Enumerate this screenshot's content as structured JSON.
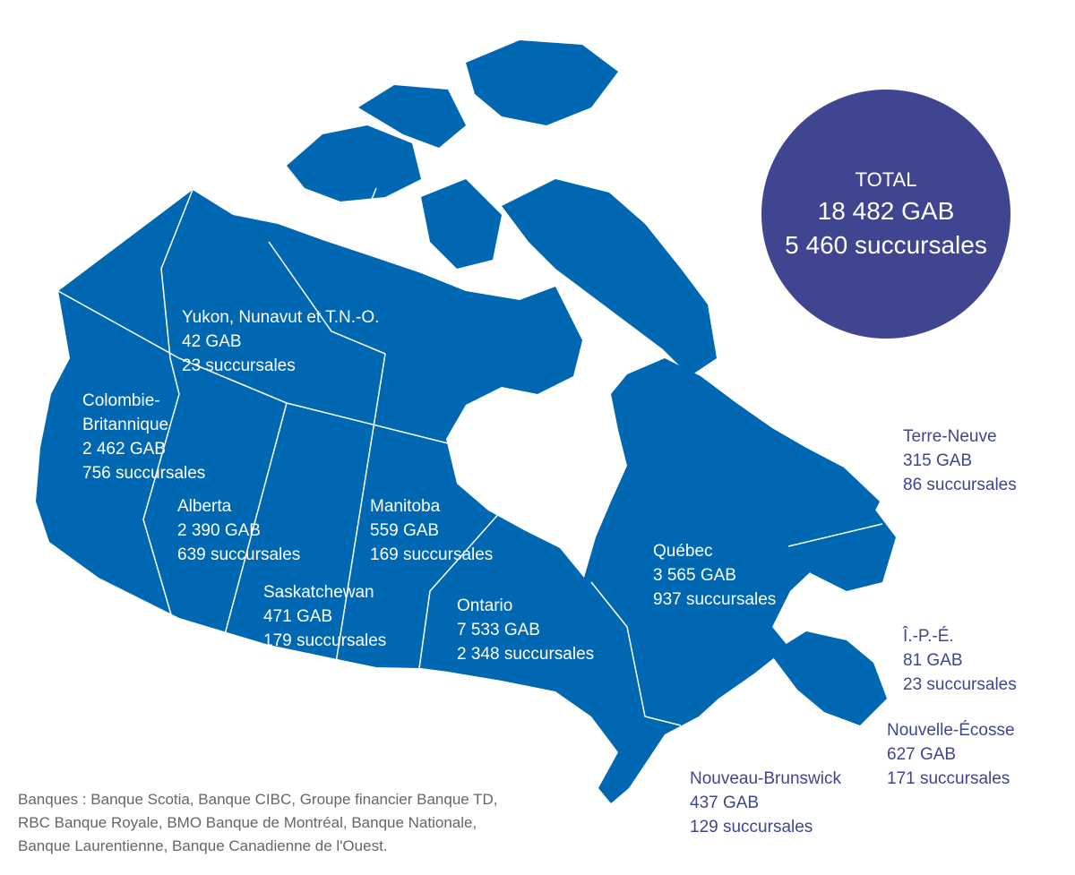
{
  "colors": {
    "map": "#0068b3",
    "border": "#ffffff",
    "circle": "#3f4590",
    "outside_label": "#3f4590",
    "footnote": "#666666"
  },
  "total": {
    "title": "TOTAL",
    "atm": "18 482 GAB",
    "branches": "5 460 succursales"
  },
  "regions": [
    {
      "name": "Yukon, Nunavut et T.N.-O.",
      "atm": "42 GAB",
      "branches": "23 succursales"
    },
    {
      "name": "Colombie-",
      "name2": "Britannique",
      "atm": "2 462 GAB",
      "branches": "756 succursales"
    },
    {
      "name": "Alberta",
      "atm": "2 390 GAB",
      "branches": "639 succursales"
    },
    {
      "name": "Saskatchewan",
      "atm": "471 GAB",
      "branches": "179 succursales"
    },
    {
      "name": "Manitoba",
      "atm": "559 GAB",
      "branches": "169 succursales"
    },
    {
      "name": "Ontario",
      "atm": "7 533 GAB",
      "branches": "2 348 succursales"
    },
    {
      "name": "Québec",
      "atm": "3 565 GAB",
      "branches": "937 succursales"
    },
    {
      "name": "Terre-Neuve",
      "atm": "315 GAB",
      "branches": "86 succursales"
    },
    {
      "name": "Î.-P.-É.",
      "atm": "81 GAB",
      "branches": "23 succursales"
    },
    {
      "name": "Nouvelle-Écosse",
      "atm": "627 GAB",
      "branches": "171 succursales"
    },
    {
      "name": "Nouveau-Brunswick",
      "atm": "437 GAB",
      "branches": "129 succursales"
    }
  ],
  "footnote": {
    "line1": "Banques : Banque Scotia, Banque CIBC, Groupe financier Banque TD,",
    "line2": "RBC Banque Royale, BMO Banque de Montréal, Banque Nationale,",
    "line3": "Banque Laurentienne, Banque Canadienne de l'Ouest."
  }
}
